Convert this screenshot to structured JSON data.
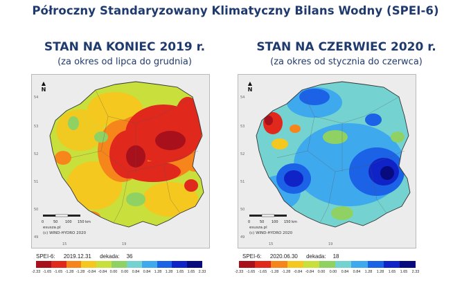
{
  "title": "Półroczny Standaryzowany Klimatyczny Bilans Wodny (SPEI-6)",
  "panels": [
    {
      "heading": "STAN NA KONIEC 2019 r.",
      "subheading": "(za okres od lipca do grudnia)",
      "map_credits": [
        "esusza.pl",
        "(c) WIND-HYDRO 2020"
      ],
      "legend_label": "SPEI-6:",
      "date": "2019.12.31",
      "dekada_label": "dekada:",
      "dekada": "36",
      "dominant_condition": "dry"
    },
    {
      "heading": "STAN NA CZERWIEC 2020 r.",
      "subheading": "(za okres od stycznia do czerwca)",
      "map_credits": [
        "esusza.pl",
        "(c) WIND-HYDRO 2020"
      ],
      "legend_label": "SPEI-6:",
      "date": "2020.06.30",
      "dekada_label": "dekada:",
      "dekada": "18",
      "dominant_condition": "wet"
    }
  ],
  "map_axes": {
    "lat_labels": [
      "54",
      "53",
      "52",
      "51",
      "50",
      "49"
    ],
    "lon_labels": [
      "15",
      "19"
    ],
    "north_label": "N",
    "scale_labels": [
      "0",
      "50",
      "100",
      "150 km"
    ]
  },
  "legend": {
    "colors": [
      "#a8111b",
      "#e0281c",
      "#f6861c",
      "#f4c81e",
      "#c8df3c",
      "#8fd163",
      "#74d3d0",
      "#3fa9ee",
      "#1b62e6",
      "#0f23c7",
      "#070b7e"
    ],
    "ticks": [
      "-2.33",
      "-1.65",
      "-1.65",
      "-1.28",
      "-1.28",
      "-0.84",
      "-0.84",
      "0.00",
      "0.00",
      "0.84",
      "0.84",
      "1.28",
      "1.28",
      "1.65",
      "1.65",
      "2.33"
    ]
  }
}
